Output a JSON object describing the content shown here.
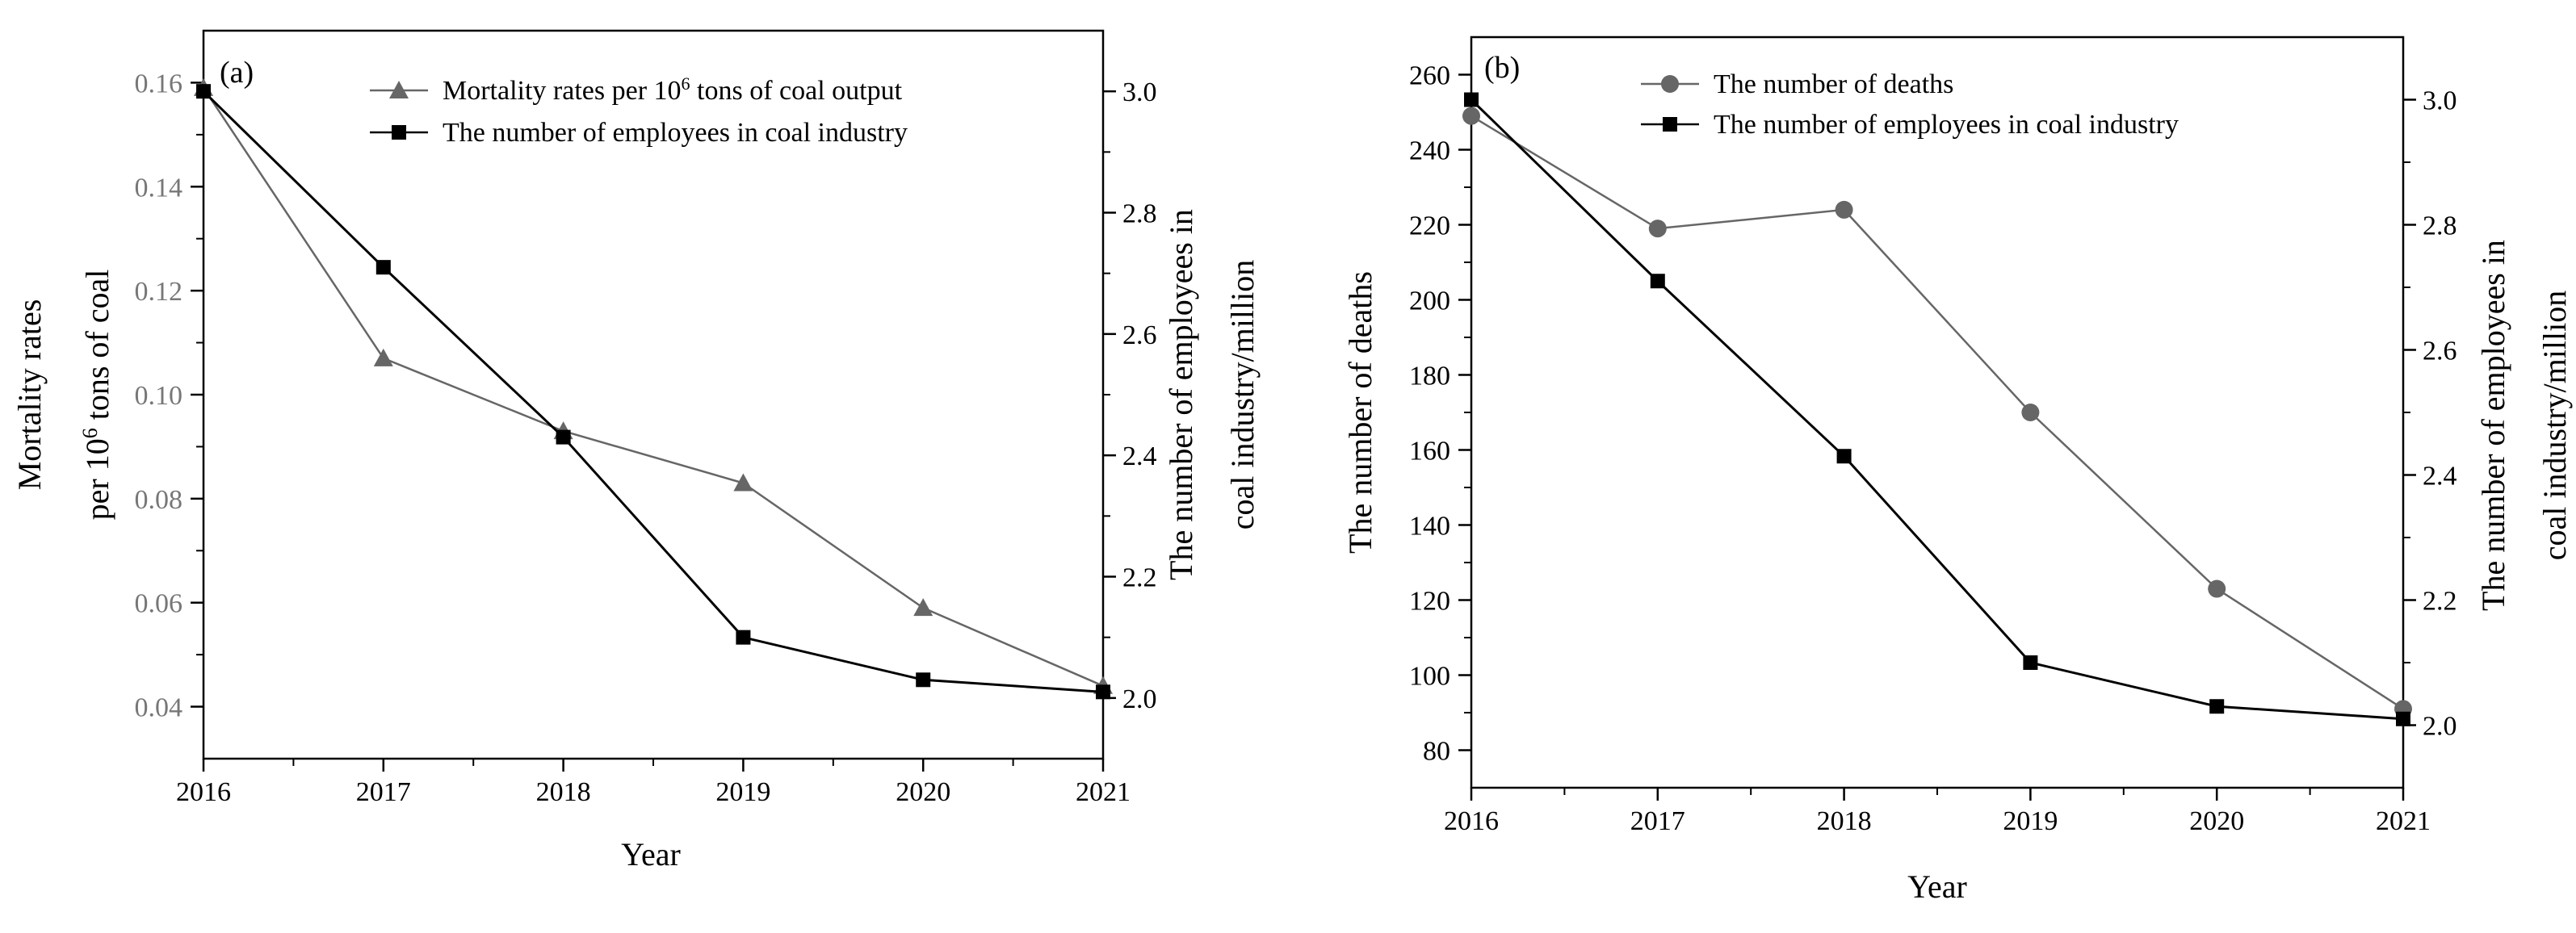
{
  "chart_data": [
    {
      "type": "line",
      "panel_label": "(a)",
      "x": [
        2016,
        2017,
        2018,
        2019,
        2020,
        2021
      ],
      "xlabel": "Year",
      "xlim": [
        2016,
        2021
      ],
      "x_ticks": [
        "2016",
        "2017",
        "2018",
        "2019",
        "2020",
        "2021"
      ],
      "ylabel_left_lines": [
        "Mortality rates",
        "per 10",
        "6",
        " tons of coal"
      ],
      "ylim_left": [
        0.03,
        0.17
      ],
      "y_ticks_left": [
        "0.04",
        "0.06",
        "0.08",
        "0.10",
        "0.12",
        "0.14",
        "0.16"
      ],
      "ylabel_right_lines": [
        "The number of employees in",
        "coal industry/million"
      ],
      "ylim_right": [
        1.9,
        3.1
      ],
      "y_ticks_right": [
        "2.0",
        "2.2",
        "2.4",
        "2.6",
        "2.8",
        "3.0"
      ],
      "legend_position": "top",
      "series": [
        {
          "name": "Mortality rates per 10^6 tons of coal output",
          "legend_parts": [
            "Mortality rates per 10",
            "6",
            " tons of coal output"
          ],
          "axis": "left",
          "marker": "triangle",
          "color": "#666666",
          "values": [
            0.159,
            0.107,
            0.093,
            0.083,
            0.059,
            0.044
          ]
        },
        {
          "name": "The number of employees in coal industry",
          "legend_parts": [
            "The number of employees in coal industry"
          ],
          "axis": "right",
          "marker": "square",
          "color": "#000000",
          "values": [
            3.0,
            2.71,
            2.43,
            2.1,
            2.03,
            2.01
          ]
        }
      ]
    },
    {
      "type": "line",
      "panel_label": "(b)",
      "x": [
        2016,
        2017,
        2018,
        2019,
        2020,
        2021
      ],
      "xlabel": "Year",
      "xlim": [
        2016,
        2021
      ],
      "x_ticks": [
        "2016",
        "2017",
        "2018",
        "2019",
        "2020",
        "2021"
      ],
      "ylabel_left_lines": [
        "The number of deaths"
      ],
      "ylim_left": [
        70,
        270
      ],
      "y_ticks_left": [
        "80",
        "100",
        "120",
        "140",
        "160",
        "180",
        "200",
        "220",
        "240",
        "260"
      ],
      "ylabel_right_lines": [
        "The number of employees in",
        "coal industry/million"
      ],
      "ylim_right": [
        1.9,
        3.1
      ],
      "y_ticks_right": [
        "2.0",
        "2.2",
        "2.4",
        "2.6",
        "2.8",
        "3.0"
      ],
      "legend_position": "top",
      "series": [
        {
          "name": "The number of deaths",
          "legend_parts": [
            "The number of deaths"
          ],
          "axis": "left",
          "marker": "circle",
          "color": "#666666",
          "values": [
            249,
            219,
            224,
            170,
            123,
            91
          ]
        },
        {
          "name": "The number of employees in coal industry",
          "legend_parts": [
            "The number of employees in coal industry"
          ],
          "axis": "right",
          "marker": "square",
          "color": "#000000",
          "values": [
            3.0,
            2.71,
            2.43,
            2.1,
            2.03,
            2.01
          ]
        }
      ]
    }
  ]
}
